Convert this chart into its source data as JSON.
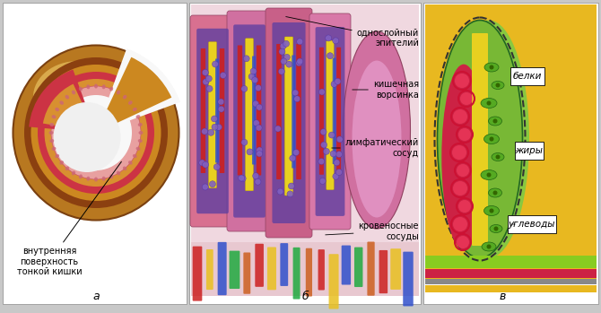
{
  "bg_color": "#c8c8c8",
  "panels": [
    "а",
    "б",
    "в"
  ],
  "panel_a_label": "внутренняя\nповерхность\nтонкой кишки",
  "font_size_labels": 7,
  "font_size_panel": 9,
  "font_size_annotation": 7
}
